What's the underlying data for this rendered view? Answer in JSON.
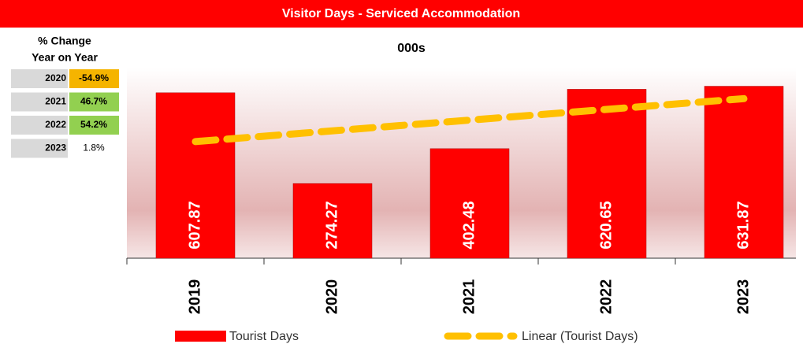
{
  "header": {
    "title": "Visitor Days - Serviced Accommodation"
  },
  "table": {
    "title": [
      "% Change",
      "Year on Year"
    ],
    "rows": [
      [
        "2020",
        "-54.9%"
      ],
      [
        "2021",
        "46.7%"
      ],
      [
        "2022",
        "54.2%"
      ],
      [
        "2023",
        "1.8%"
      ]
    ],
    "colors": [
      "#f5b400",
      "#92d050",
      "#92d050",
      null
    ]
  },
  "chart_data": {
    "type": "bar",
    "subtitle": "000s",
    "categories": [
      "2019",
      "2020",
      "2021",
      "2022",
      "2023"
    ],
    "series": [
      {
        "name": "Tourist Days",
        "color": "#ff0000",
        "values": [
          607.87,
          274.27,
          402.48,
          620.65,
          631.87
        ]
      }
    ],
    "trendline": {
      "name": "Linear (Tourist Days)",
      "color": "#ffc000"
    },
    "ylim": [
      0,
      700
    ]
  }
}
